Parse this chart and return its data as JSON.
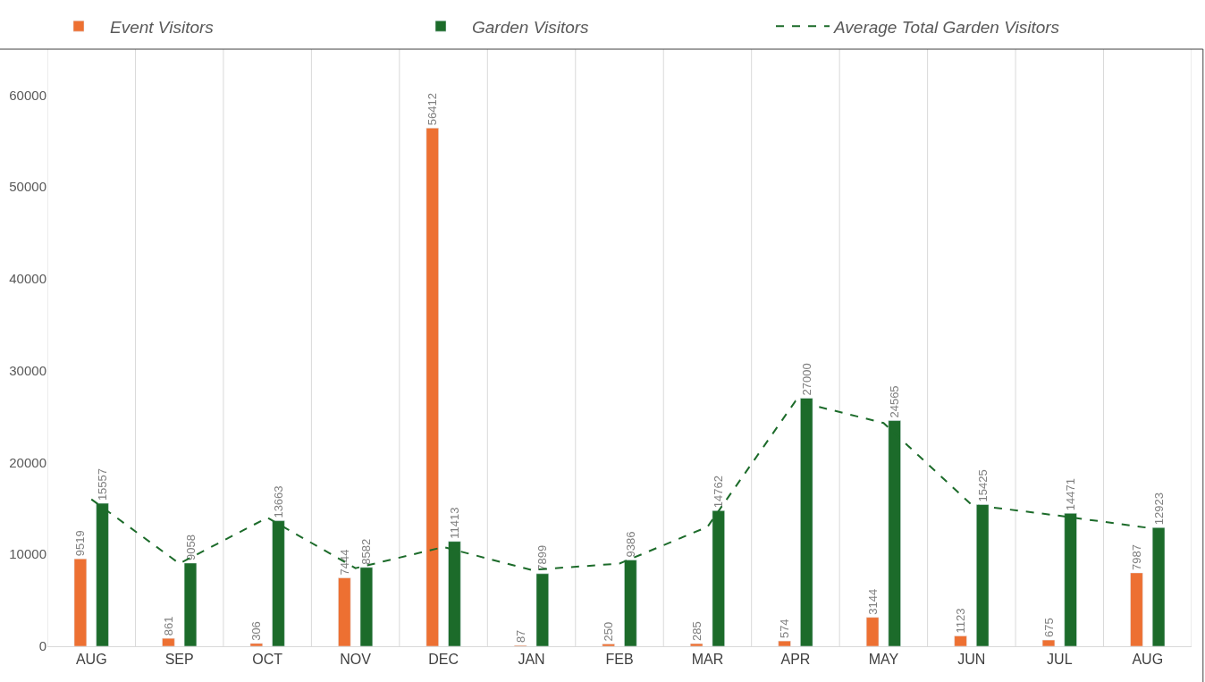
{
  "chart_data": {
    "type": "bar",
    "categories": [
      "AUG",
      "SEP",
      "OCT",
      "NOV",
      "DEC",
      "JAN",
      "FEB",
      "MAR",
      "APR",
      "MAY",
      "JUN",
      "JUL",
      "AUG"
    ],
    "series": [
      {
        "name": "Event Visitors",
        "color": "#ed7032",
        "values": [
          9519,
          861,
          306,
          7444,
          56412,
          87,
          250,
          285,
          574,
          3144,
          1123,
          675,
          7987
        ],
        "value_labels": [
          "9519",
          "861",
          "306",
          "7444",
          "56412",
          "87",
          "250",
          "285",
          "574",
          "3144",
          "1123",
          "675",
          "7987"
        ]
      },
      {
        "name": "Garden Visitors",
        "color": "#1c6b2a",
        "values": [
          15557,
          9058,
          13663,
          8582,
          11413,
          7899,
          9386,
          14762,
          27000,
          24565,
          15425,
          14471,
          12923
        ],
        "value_labels": [
          "15557",
          "9058",
          "13663",
          "8582",
          "11413",
          "7899",
          "9386",
          "14762",
          "27000",
          "24565",
          "15425",
          "14471",
          "12923"
        ]
      },
      {
        "name": "Average Total Garden Visitors",
        "type": "line",
        "line_style": "dashed",
        "color": "#1c6b2a",
        "values": [
          16000,
          9000,
          14000,
          8500,
          10800,
          8300,
          9000,
          13000,
          26700,
          24300,
          15400,
          14200,
          12900
        ]
      }
    ],
    "ylim": [
      0,
      65000
    ],
    "yticks": [
      0,
      10000,
      20000,
      30000,
      40000,
      50000,
      60000
    ],
    "grid": "x",
    "legend": "top"
  }
}
